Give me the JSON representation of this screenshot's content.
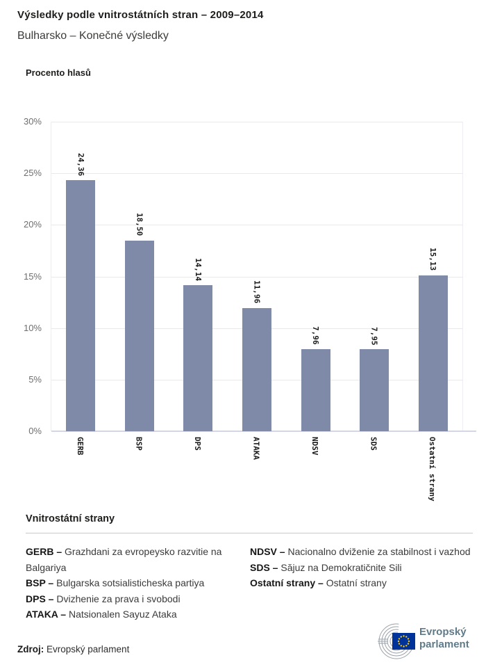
{
  "header": {
    "title": "Výsledky podle vnitrostátních stran – 2009–2014",
    "subtitle": "Bulharsko – Konečné výsledky"
  },
  "chart_data": {
    "type": "bar",
    "title": "Výsledky podle vnitrostátních stran – 2009–2014",
    "ylabel": "Procento hlasů",
    "xlabel": "",
    "categories": [
      "GERB",
      "BSP",
      "DPS",
      "ATAKA",
      "NDSV",
      "SDS",
      "Ostatní strany"
    ],
    "values": [
      24.36,
      18.5,
      14.14,
      11.96,
      7.96,
      7.95,
      15.13
    ],
    "value_labels": [
      "24,36",
      "18,50",
      "14,14",
      "11,96",
      "7,96",
      "7,95",
      "15,13"
    ],
    "ylim": [
      0,
      30
    ],
    "yticks": [
      30,
      25,
      20,
      15,
      10,
      5,
      0
    ],
    "ytick_suffix": "%",
    "grid": "horizontal",
    "legend_position": "none",
    "bar_color": "#7f8aa8"
  },
  "legend": {
    "heading": "Vnitrostátní strany",
    "columns": [
      [
        {
          "abbr": "GERB –",
          "desc": "Grazhdani za evropeysko razvitie na Balgariya"
        },
        {
          "abbr": "BSP –",
          "desc": "Bulgarska sotsialisticheska partiya"
        },
        {
          "abbr": "DPS –",
          "desc": "Dvizhenie za prava i svobodi"
        },
        {
          "abbr": "ATAKA –",
          "desc": "Natsionalen Sayuz Ataka"
        }
      ],
      [
        {
          "abbr": "NDSV –",
          "desc": "Nacionalno dviženie za stabilnost i vazhod"
        },
        {
          "abbr": "SDS –",
          "desc": "Săjuz na Demokratičnite Sili"
        },
        {
          "abbr": "Ostatní strany –",
          "desc": "Ostatní strany"
        }
      ]
    ]
  },
  "footer": {
    "source_label": "Zdroj:",
    "source_value": "Evropský parlament",
    "logo_line1": "Evropský",
    "logo_line2": "parlament"
  },
  "colors": {
    "bar": "#7f8aa8",
    "gridline": "#e9e9e9",
    "axis_line": "#d3d6e8",
    "eu_blue": "#003399",
    "star_yellow": "#ffcc00",
    "logo_arc_gray": "#9aa1a8",
    "logo_text": "#5f7a88"
  }
}
